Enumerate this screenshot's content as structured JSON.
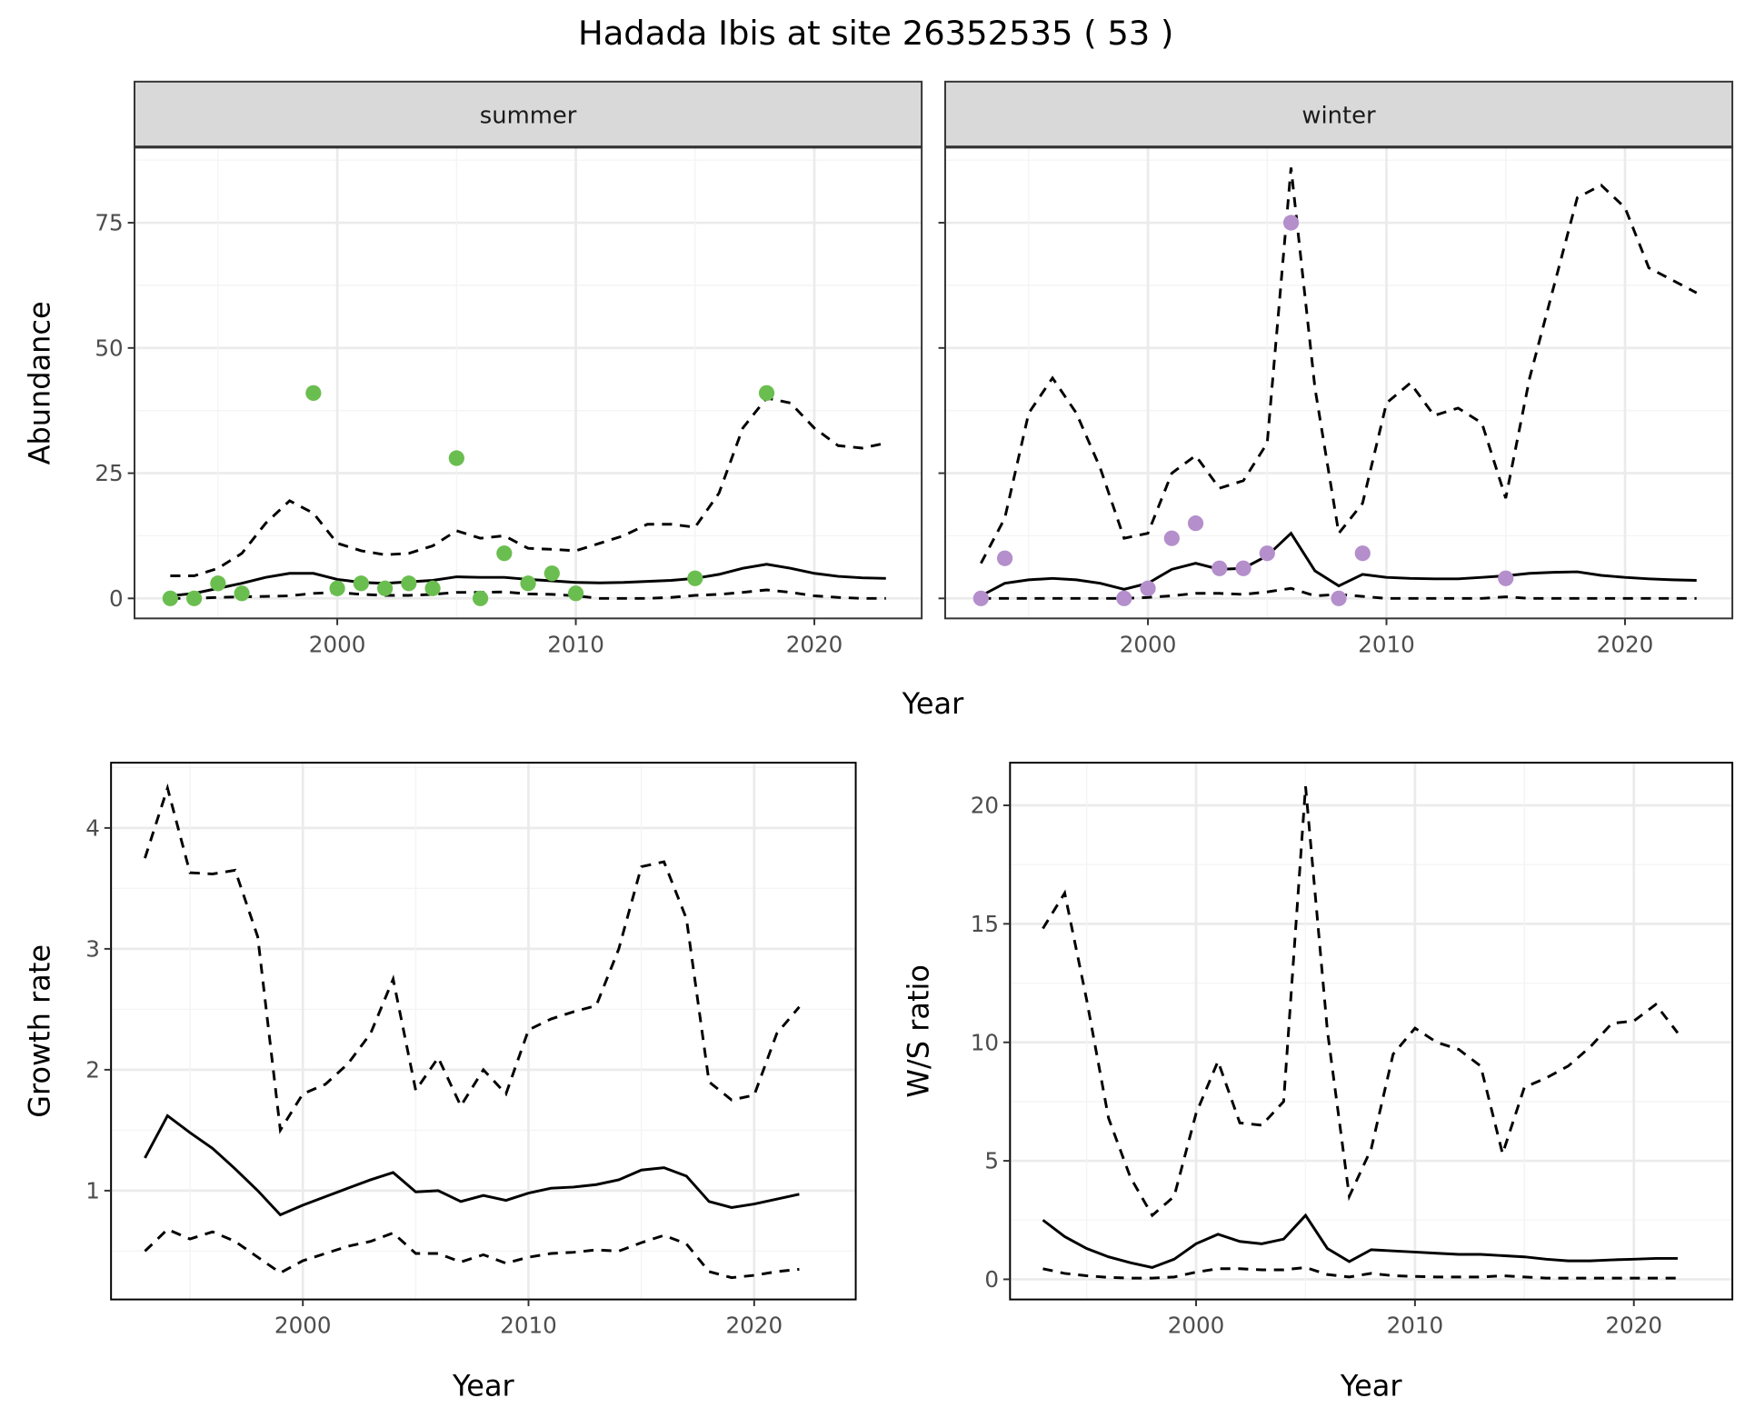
{
  "chart_data": {
    "title": "Hadada Ibis at site 26352535 ( 53 )",
    "panels": [
      {
        "id": "summer",
        "type": "line+scatter",
        "strip": "summer",
        "ylabel": "Abundance",
        "xlabel": "",
        "xlim": [
          1991.5,
          2024.5
        ],
        "ylim": [
          -4,
          90
        ],
        "xticks": [
          2000,
          2010,
          2020
        ],
        "yticks": [
          0,
          25,
          50,
          75
        ],
        "grid": true,
        "point_color": "#6ABE4F",
        "points": {
          "x": [
            1993,
            1994,
            1995,
            1996,
            1999,
            2000,
            2001,
            2002,
            2003,
            2004,
            2005,
            2006,
            2007,
            2008,
            2009,
            2010,
            2015,
            2018
          ],
          "y": [
            0,
            0,
            3,
            1,
            41,
            2,
            3,
            2,
            3,
            2,
            28,
            0,
            9,
            3,
            5,
            1,
            4,
            41
          ]
        },
        "x": [
          1993,
          1994,
          1995,
          1996,
          1997,
          1998,
          1999,
          2000,
          2001,
          2002,
          2003,
          2004,
          2005,
          2006,
          2007,
          2008,
          2009,
          2010,
          2011,
          2012,
          2013,
          2014,
          2015,
          2016,
          2017,
          2018,
          2019,
          2020,
          2021,
          2022,
          2023
        ],
        "mean": [
          0.5,
          1,
          2,
          3,
          4.2,
          5,
          5,
          3.8,
          3.2,
          3,
          3.3,
          3.6,
          4.3,
          4.2,
          4.2,
          3.8,
          3.5,
          3.2,
          3.1,
          3.2,
          3.4,
          3.6,
          4,
          4.8,
          6,
          6.8,
          6,
          5,
          4.4,
          4.1,
          4
        ],
        "upper": [
          4.5,
          4.5,
          6,
          9,
          15,
          19.5,
          17,
          11,
          9.5,
          8.7,
          9,
          10.5,
          13.5,
          12,
          12.5,
          10,
          9.8,
          9.5,
          11,
          12.5,
          14.8,
          14.8,
          14.2,
          21,
          34,
          40,
          39,
          34,
          30.5,
          30,
          31
        ],
        "lower": [
          0,
          0,
          0.2,
          0.3,
          0.4,
          0.5,
          1,
          1.2,
          0.8,
          0.6,
          0.6,
          0.8,
          1.2,
          1.2,
          1.3,
          0.9,
          0.8,
          0.5,
          0,
          0,
          0,
          0.2,
          0.6,
          0.8,
          1.2,
          1.7,
          1.2,
          0.5,
          0.2,
          0,
          0
        ]
      },
      {
        "id": "winter",
        "type": "line+scatter",
        "strip": "winter",
        "ylabel": "",
        "xlabel": "",
        "xlim": [
          1991.5,
          2024.5
        ],
        "ylim": [
          -4,
          90
        ],
        "xticks": [
          2000,
          2010,
          2020
        ],
        "yticks": [
          0,
          25,
          50,
          75
        ],
        "grid": true,
        "point_color": "#B48FCB",
        "points": {
          "x": [
            1993,
            1994,
            1999,
            2000,
            2001,
            2002,
            2003,
            2004,
            2005,
            2006,
            2008,
            2009,
            2015
          ],
          "y": [
            0,
            8,
            0,
            2,
            12,
            15,
            6,
            6,
            9,
            75,
            0,
            9,
            4
          ]
        },
        "x": [
          1993,
          1994,
          1995,
          1996,
          1997,
          1998,
          1999,
          2000,
          2001,
          2002,
          2003,
          2004,
          2005,
          2006,
          2007,
          2008,
          2009,
          2010,
          2011,
          2012,
          2013,
          2014,
          2015,
          2016,
          2017,
          2018,
          2019,
          2020,
          2021,
          2022,
          2023
        ],
        "mean": [
          0.5,
          3,
          3.7,
          4,
          3.7,
          3,
          1.8,
          3,
          5.8,
          7,
          5.8,
          6,
          8.5,
          13,
          5.5,
          2.5,
          4.8,
          4.2,
          4,
          3.9,
          3.9,
          4.2,
          4.5,
          5,
          5.2,
          5.3,
          4.6,
          4.2,
          3.9,
          3.7,
          3.6
        ],
        "upper": [
          7,
          16,
          37,
          44,
          37,
          26,
          12,
          13,
          25,
          28.5,
          22,
          23.5,
          31,
          86,
          42,
          13,
          19,
          39,
          43,
          36.5,
          38,
          35,
          20,
          44,
          62,
          80,
          82.5,
          78,
          66,
          63.5,
          61
        ],
        "lower": [
          0,
          0,
          0,
          0,
          0,
          0,
          0,
          0.2,
          0.5,
          1,
          1,
          0.8,
          1.3,
          2,
          0.5,
          0.8,
          0.4,
          0,
          0,
          0,
          0,
          0,
          0.3,
          0,
          0,
          0,
          0,
          0,
          0,
          0,
          0
        ]
      },
      {
        "id": "growth",
        "type": "line",
        "ylabel": "Growth rate",
        "xlabel": "Year",
        "xlim": [
          1991.5,
          2024.5
        ],
        "ylim": [
          0.1,
          4.54
        ],
        "xticks": [
          2000,
          2010,
          2020
        ],
        "yticks": [
          1,
          2,
          3,
          4
        ],
        "grid": true,
        "x": [
          1993,
          1994,
          1995,
          1996,
          1997,
          1998,
          1999,
          2000,
          2001,
          2002,
          2003,
          2004,
          2005,
          2006,
          2007,
          2008,
          2009,
          2010,
          2011,
          2012,
          2013,
          2014,
          2015,
          2016,
          2017,
          2018,
          2019,
          2020,
          2021,
          2022
        ],
        "mean": [
          1.27,
          1.62,
          1.48,
          1.35,
          1.18,
          1.0,
          0.8,
          0.88,
          0.95,
          1.02,
          1.09,
          1.15,
          0.99,
          1.0,
          0.91,
          0.96,
          0.92,
          0.98,
          1.02,
          1.03,
          1.05,
          1.09,
          1.17,
          1.19,
          1.12,
          0.91,
          0.86,
          0.89,
          0.93,
          0.97
        ],
        "upper": [
          3.75,
          4.33,
          3.63,
          3.62,
          3.65,
          3.1,
          1.5,
          1.8,
          1.88,
          2.05,
          2.3,
          2.75,
          1.83,
          2.1,
          1.7,
          2.0,
          1.8,
          2.33,
          2.42,
          2.48,
          2.53,
          3.0,
          3.68,
          3.72,
          3.25,
          1.9,
          1.75,
          1.79,
          2.3,
          2.52
        ],
        "lower": [
          0.5,
          0.68,
          0.6,
          0.66,
          0.58,
          0.45,
          0.32,
          0.42,
          0.48,
          0.54,
          0.58,
          0.65,
          0.48,
          0.48,
          0.41,
          0.47,
          0.4,
          0.45,
          0.48,
          0.49,
          0.51,
          0.5,
          0.57,
          0.63,
          0.56,
          0.33,
          0.28,
          0.3,
          0.33,
          0.35
        ]
      },
      {
        "id": "ws",
        "type": "line",
        "ylabel": "W/S ratio",
        "xlabel": "Year",
        "xlim": [
          1991.5,
          2024.5
        ],
        "ylim": [
          -0.85,
          21.8
        ],
        "xticks": [
          2000,
          2010,
          2020
        ],
        "yticks": [
          0,
          5,
          10,
          15,
          20
        ],
        "grid": true,
        "x": [
          1993,
          1994,
          1995,
          1996,
          1997,
          1998,
          1999,
          2000,
          2001,
          2002,
          2003,
          2004,
          2005,
          2006,
          2007,
          2008,
          2009,
          2010,
          2011,
          2012,
          2013,
          2014,
          2015,
          2016,
          2017,
          2018,
          2019,
          2020,
          2021,
          2022
        ],
        "mean": [
          2.5,
          1.8,
          1.3,
          0.95,
          0.7,
          0.5,
          0.85,
          1.5,
          1.9,
          1.6,
          1.5,
          1.7,
          2.7,
          1.3,
          0.75,
          1.25,
          1.2,
          1.15,
          1.1,
          1.05,
          1.05,
          1.0,
          0.95,
          0.85,
          0.78,
          0.78,
          0.82,
          0.85,
          0.88,
          0.88
        ],
        "upper": [
          14.8,
          16.3,
          11.8,
          6.8,
          4.3,
          2.7,
          3.5,
          7.0,
          9.2,
          6.6,
          6.5,
          7.5,
          20.8,
          10.5,
          3.5,
          5.5,
          9.5,
          10.6,
          10.0,
          9.7,
          9.0,
          5.3,
          8.1,
          8.5,
          9.0,
          9.8,
          10.8,
          10.9,
          11.6,
          10.4
        ],
        "lower": [
          0.45,
          0.25,
          0.15,
          0.08,
          0.05,
          0.05,
          0.1,
          0.3,
          0.45,
          0.45,
          0.4,
          0.4,
          0.5,
          0.2,
          0.1,
          0.25,
          0.15,
          0.12,
          0.1,
          0.1,
          0.1,
          0.15,
          0.1,
          0.05,
          0.05,
          0.05,
          0.05,
          0.05,
          0.05,
          0.05
        ]
      }
    ],
    "shared_xlabel_top": "Year"
  }
}
